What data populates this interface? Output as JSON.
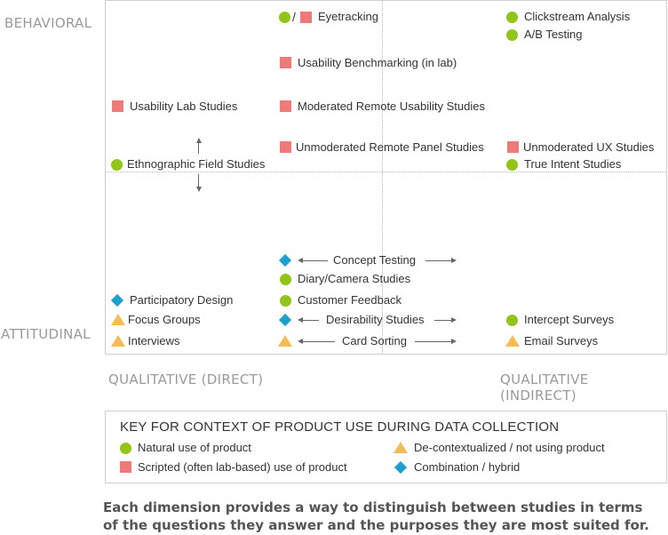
{
  "axes": {
    "top": "BEHAVIORAL",
    "bottom": "ATTITUDINAL",
    "left": "QUALITATIVE (DIRECT)",
    "right": "QUALITATIVE (INDIRECT)"
  },
  "items": {
    "eyetracking": "Eyetracking",
    "clickstream": "Clickstream Analysis",
    "ab_testing": "A/B Testing",
    "benchmarking": "Usability Benchmarking (in lab)",
    "lab_studies": "Usability Lab Studies",
    "moderated_remote": "Moderated Remote Usability Studies",
    "unmoderated_panel": "Unmoderated Remote Panel Studies",
    "unmoderated_ux": "Unmoderated UX Studies",
    "ethnographic": "Ethnographic Field Studies",
    "true_intent": "True Intent Studies",
    "concept_testing": "Concept Testing",
    "diary": "Diary/Camera Studies",
    "participatory": "Participatory Design",
    "customer_feedback": "Customer Feedback",
    "focus_groups": "Focus Groups",
    "desirability": "Desirability Studies",
    "intercept": "Intercept Surveys",
    "interviews": "Interviews",
    "card_sorting": "Card Sorting",
    "email_surveys": "Email Surveys",
    "slash": "/"
  },
  "key": {
    "title": "KEY FOR CONTEXT OF PRODUCT USE DURING DATA COLLECTION",
    "natural": "Natural use of product",
    "scripted": "Scripted (often lab-based) use of product",
    "decontextualized": "De-contextualized / not using product",
    "combination": "Combination / hybrid"
  },
  "colors": {
    "natural": "#92c41a",
    "scripted": "#ee7a7a",
    "decontextualized": "#f3bc54",
    "combination": "#1ea0cc"
  },
  "caption": "Each dimension provides a way to distinguish between studies in terms of the questions they answer and the purposes they are most suited for."
}
